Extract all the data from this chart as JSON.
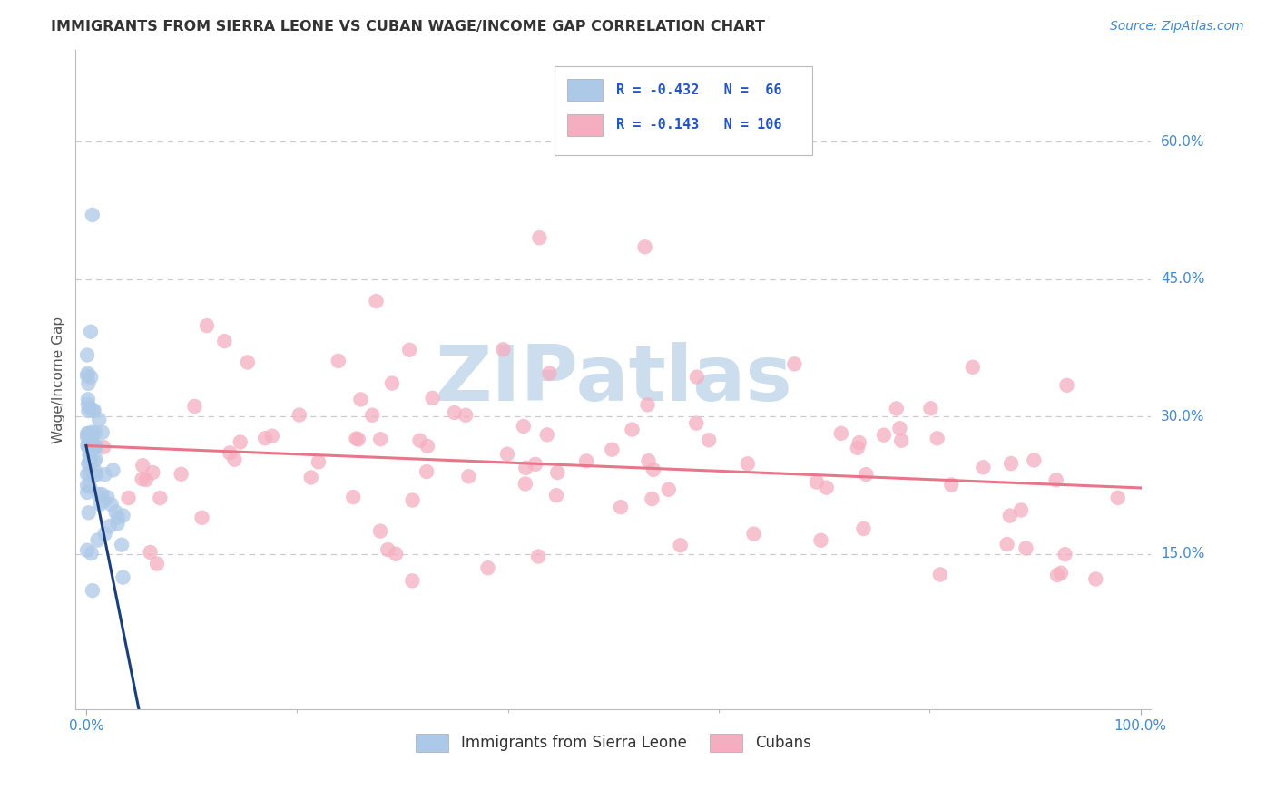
{
  "title": "IMMIGRANTS FROM SIERRA LEONE VS CUBAN WAGE/INCOME GAP CORRELATION CHART",
  "source": "Source: ZipAtlas.com",
  "ylabel": "Wage/Income Gap",
  "ytick_vals": [
    0.15,
    0.3,
    0.45,
    0.6
  ],
  "ytick_labels": [
    "15.0%",
    "30.0%",
    "45.0%",
    "60.0%"
  ],
  "xlim": [
    -0.01,
    1.01
  ],
  "ylim": [
    -0.02,
    0.7
  ],
  "legend_labels": [
    "Immigrants from Sierra Leone",
    "Cubans"
  ],
  "sierra_leone_color": "#adc9e8",
  "cuban_color": "#f5aec0",
  "sierra_leone_line_color": "#1a3f7a",
  "cuban_line_color": "#e8758a",
  "sierra_leone_R": "-0.432",
  "sierra_leone_N": "66",
  "cuban_R": "-0.143",
  "cuban_N": "106",
  "background_color": "#ffffff",
  "watermark_text": "ZIPatlas",
  "watermark_color": "#ccdded",
  "grid_color": "#cccccc",
  "title_color": "#333333",
  "source_color": "#4488cc",
  "axis_tick_color": "#4488cc",
  "ylabel_color": "#555555"
}
